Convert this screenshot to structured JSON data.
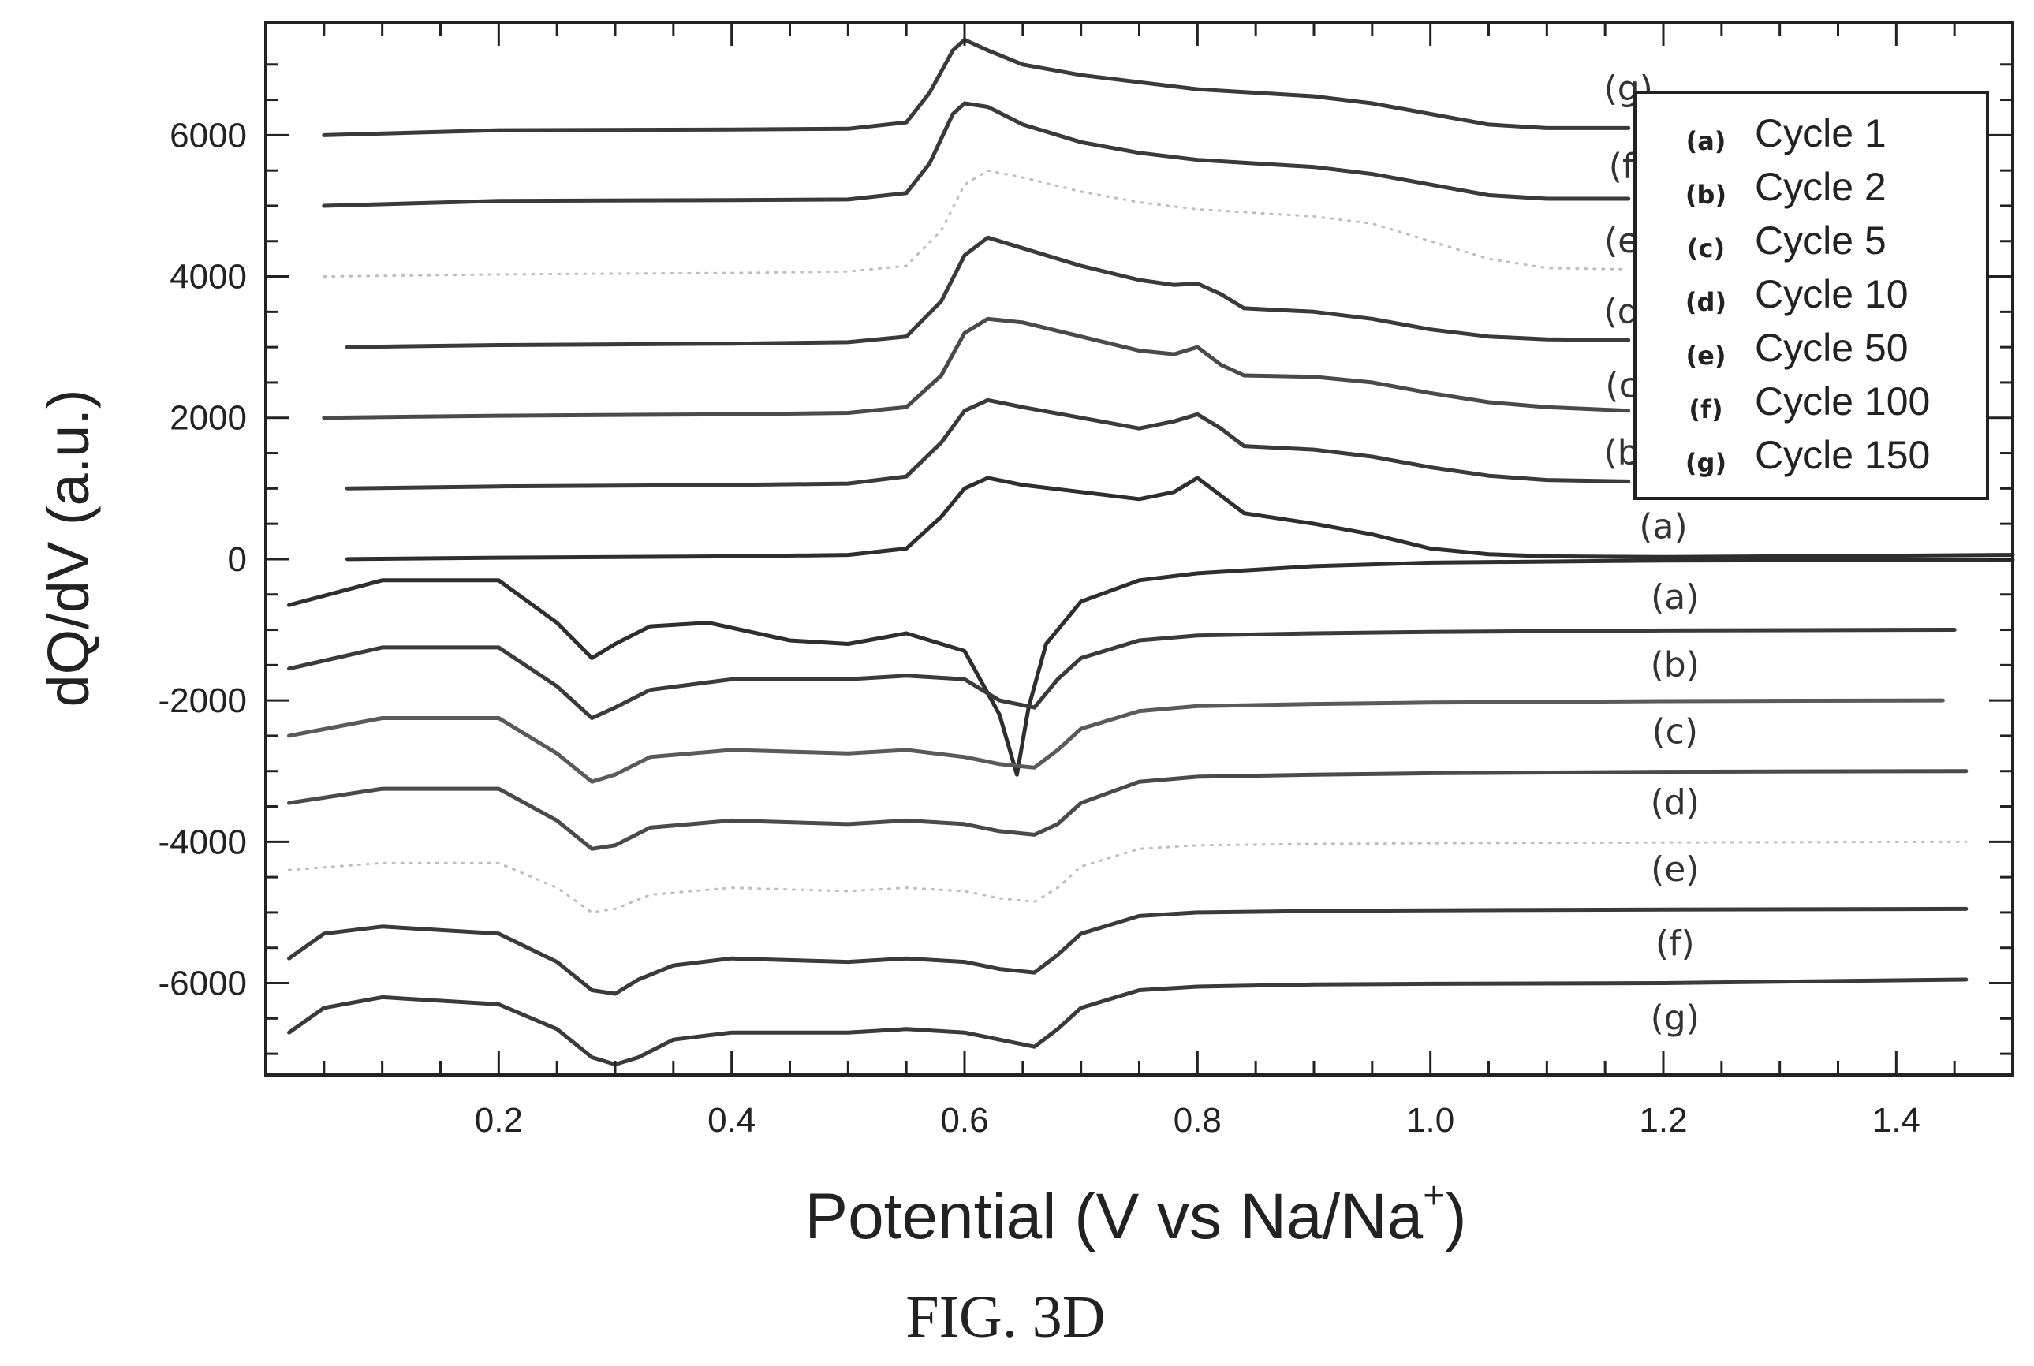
{
  "figure": {
    "caption": "FIG. 3D"
  },
  "chart_data": {
    "type": "line",
    "title": "",
    "xlabel": "Potential (V vs Na/Na",
    "xlabel_sup": "+",
    "xlabel_close": ")",
    "ylabel": "dQ/dV (a.u.)",
    "xlim": [
      0.0,
      1.5
    ],
    "ylim": [
      -7300,
      7600
    ],
    "xticks": [
      0.2,
      0.4,
      0.6,
      0.8,
      1.0,
      1.2,
      1.4
    ],
    "xtick_labels": [
      "0.2",
      "0.4",
      "0.6",
      "0.8",
      "1.0",
      "1.2",
      "1.4"
    ],
    "yticks": [
      6000,
      4000,
      2000,
      0,
      -2000,
      -4000,
      -6000
    ],
    "ytick_labels": [
      "6000",
      "4000",
      "2000",
      "0",
      "-2000",
      "-4000",
      "-6000"
    ],
    "legend_position": "top-right",
    "legend": [
      {
        "key": "(a)",
        "label": "Cycle 1"
      },
      {
        "key": "(b)",
        "label": "Cycle 2"
      },
      {
        "key": "(c)",
        "label": "Cycle 5"
      },
      {
        "key": "(d)",
        "label": "Cycle 10"
      },
      {
        "key": "(e)",
        "label": "Cycle 50"
      },
      {
        "key": "(f)",
        "label": "Cycle 100"
      },
      {
        "key": "(g)",
        "label": "Cycle 150"
      }
    ],
    "charge_labels": [
      {
        "text": "(g)",
        "x": 1.17,
        "y": 6650
      },
      {
        "text": "(f)",
        "x": 1.17,
        "y": 5550
      },
      {
        "text": "(e)",
        "x": 1.17,
        "y": 4500
      },
      {
        "text": "(d)",
        "x": 1.17,
        "y": 3500
      },
      {
        "text": "(c)",
        "x": 1.17,
        "y": 2450
      },
      {
        "text": "(b)",
        "x": 1.17,
        "y": 1500
      },
      {
        "text": "(a)",
        "x": 1.2,
        "y": 450
      }
    ],
    "discharge_labels": [
      {
        "text": "(a)",
        "x": 1.21,
        "y": -550
      },
      {
        "text": "(b)",
        "x": 1.21,
        "y": -1500
      },
      {
        "text": "(c)",
        "x": 1.21,
        "y": -2450
      },
      {
        "text": "(d)",
        "x": 1.21,
        "y": -3450
      },
      {
        "text": "(e)",
        "x": 1.21,
        "y": -4400
      },
      {
        "text": "(f)",
        "x": 1.21,
        "y": -5450
      },
      {
        "text": "(g)",
        "x": 1.21,
        "y": -6500
      }
    ],
    "series": [
      {
        "name": "(a)",
        "color": "#2e2e2e",
        "dotted": false,
        "x": [
          0.07,
          0.2,
          0.4,
          0.5,
          0.55,
          0.58,
          0.6,
          0.62,
          0.65,
          0.7,
          0.75,
          0.78,
          0.8,
          0.82,
          0.84,
          0.9,
          0.95,
          1.0,
          1.05,
          1.1,
          1.2,
          1.3,
          1.4,
          1.5
        ],
        "y": [
          0,
          20,
          40,
          60,
          150,
          600,
          1000,
          1150,
          1050,
          950,
          850,
          950,
          1150,
          900,
          650,
          500,
          350,
          150,
          70,
          40,
          30,
          40,
          50,
          60
        ]
      },
      {
        "name": "(b)",
        "color": "#3a3a3a",
        "dotted": false,
        "x": [
          0.07,
          0.2,
          0.4,
          0.5,
          0.55,
          0.58,
          0.6,
          0.62,
          0.65,
          0.7,
          0.75,
          0.78,
          0.8,
          0.82,
          0.84,
          0.9,
          0.95,
          1.0,
          1.05,
          1.1,
          1.17
        ],
        "y": [
          1000,
          1030,
          1050,
          1070,
          1170,
          1650,
          2100,
          2250,
          2150,
          2000,
          1850,
          1950,
          2050,
          1850,
          1600,
          1550,
          1450,
          1300,
          1180,
          1120,
          1100
        ]
      },
      {
        "name": "(c)",
        "color": "#4a4a4a",
        "dotted": false,
        "x": [
          0.05,
          0.2,
          0.4,
          0.5,
          0.55,
          0.58,
          0.6,
          0.62,
          0.65,
          0.7,
          0.75,
          0.78,
          0.8,
          0.82,
          0.84,
          0.9,
          0.95,
          1.0,
          1.05,
          1.1,
          1.17
        ],
        "y": [
          2000,
          2030,
          2050,
          2070,
          2150,
          2600,
          3200,
          3400,
          3350,
          3150,
          2950,
          2900,
          3000,
          2750,
          2600,
          2580,
          2500,
          2350,
          2220,
          2150,
          2100
        ]
      },
      {
        "name": "(d)",
        "color": "#3a3a3a",
        "dotted": false,
        "x": [
          0.07,
          0.2,
          0.4,
          0.5,
          0.55,
          0.58,
          0.6,
          0.62,
          0.65,
          0.7,
          0.75,
          0.78,
          0.8,
          0.82,
          0.84,
          0.9,
          0.95,
          1.0,
          1.05,
          1.1,
          1.17
        ],
        "y": [
          3000,
          3030,
          3050,
          3070,
          3150,
          3650,
          4300,
          4550,
          4400,
          4150,
          3950,
          3880,
          3900,
          3750,
          3550,
          3500,
          3400,
          3250,
          3150,
          3110,
          3100
        ]
      },
      {
        "name": "(e)",
        "color": "#bdbdbd",
        "dotted": true,
        "x": [
          0.05,
          0.2,
          0.4,
          0.5,
          0.55,
          0.58,
          0.6,
          0.62,
          0.65,
          0.7,
          0.75,
          0.8,
          0.85,
          0.9,
          0.95,
          1.0,
          1.05,
          1.1,
          1.17
        ],
        "y": [
          4000,
          4030,
          4050,
          4070,
          4150,
          4650,
          5300,
          5500,
          5400,
          5200,
          5050,
          4950,
          4900,
          4850,
          4750,
          4500,
          4250,
          4120,
          4100
        ]
      },
      {
        "name": "(f)",
        "color": "#3a3a3a",
        "dotted": false,
        "x": [
          0.05,
          0.2,
          0.4,
          0.5,
          0.55,
          0.57,
          0.59,
          0.6,
          0.62,
          0.65,
          0.7,
          0.75,
          0.8,
          0.85,
          0.9,
          0.95,
          1.0,
          1.05,
          1.1,
          1.17
        ],
        "y": [
          5000,
          5070,
          5080,
          5090,
          5180,
          5600,
          6300,
          6450,
          6400,
          6150,
          5900,
          5750,
          5650,
          5600,
          5550,
          5450,
          5300,
          5150,
          5100,
          5100
        ]
      },
      {
        "name": "(g)",
        "color": "#3a3a3a",
        "dotted": false,
        "x": [
          0.05,
          0.2,
          0.4,
          0.5,
          0.55,
          0.57,
          0.59,
          0.6,
          0.62,
          0.65,
          0.7,
          0.75,
          0.8,
          0.85,
          0.9,
          0.95,
          1.0,
          1.05,
          1.1,
          1.17
        ],
        "y": [
          6000,
          6070,
          6080,
          6090,
          6180,
          6600,
          7200,
          7350,
          7200,
          7000,
          6850,
          6750,
          6650,
          6600,
          6550,
          6450,
          6300,
          6150,
          6100,
          6100
        ]
      },
      {
        "name": "(a)",
        "color": "#2e2e2e",
        "dotted": false,
        "x": [
          0.02,
          0.1,
          0.2,
          0.25,
          0.28,
          0.3,
          0.33,
          0.38,
          0.45,
          0.5,
          0.55,
          0.6,
          0.63,
          0.645,
          0.655,
          0.67,
          0.7,
          0.75,
          0.8,
          0.9,
          1.0,
          1.2,
          1.5
        ],
        "y": [
          -650,
          -300,
          -300,
          -900,
          -1400,
          -1200,
          -950,
          -900,
          -1150,
          -1200,
          -1050,
          -1300,
          -2200,
          -3050,
          -2100,
          -1200,
          -600,
          -300,
          -200,
          -100,
          -50,
          -20,
          -10
        ]
      },
      {
        "name": "(b)",
        "color": "#3a3a3a",
        "dotted": false,
        "x": [
          0.02,
          0.1,
          0.2,
          0.25,
          0.28,
          0.3,
          0.33,
          0.4,
          0.5,
          0.55,
          0.6,
          0.63,
          0.66,
          0.68,
          0.7,
          0.75,
          0.8,
          0.9,
          1.0,
          1.2,
          1.45
        ],
        "y": [
          -1550,
          -1250,
          -1250,
          -1800,
          -2250,
          -2100,
          -1850,
          -1700,
          -1700,
          -1650,
          -1700,
          -2000,
          -2100,
          -1700,
          -1400,
          -1150,
          -1080,
          -1050,
          -1030,
          -1010,
          -1000
        ]
      },
      {
        "name": "(c)",
        "color": "#5a5a5a",
        "dotted": false,
        "x": [
          0.02,
          0.1,
          0.2,
          0.25,
          0.28,
          0.3,
          0.33,
          0.4,
          0.5,
          0.55,
          0.6,
          0.63,
          0.66,
          0.68,
          0.7,
          0.75,
          0.8,
          0.9,
          1.0,
          1.2,
          1.44
        ],
        "y": [
          -2500,
          -2250,
          -2250,
          -2750,
          -3150,
          -3050,
          -2800,
          -2700,
          -2750,
          -2700,
          -2800,
          -2900,
          -2950,
          -2700,
          -2400,
          -2150,
          -2080,
          -2050,
          -2030,
          -2010,
          -2000
        ]
      },
      {
        "name": "(d)",
        "color": "#4a4a4a",
        "dotted": false,
        "x": [
          0.02,
          0.1,
          0.2,
          0.25,
          0.28,
          0.3,
          0.33,
          0.4,
          0.5,
          0.55,
          0.6,
          0.63,
          0.66,
          0.68,
          0.7,
          0.75,
          0.8,
          0.9,
          1.0,
          1.2,
          1.46
        ],
        "y": [
          -3450,
          -3250,
          -3250,
          -3700,
          -4100,
          -4050,
          -3800,
          -3700,
          -3750,
          -3700,
          -3750,
          -3850,
          -3900,
          -3750,
          -3450,
          -3150,
          -3080,
          -3050,
          -3030,
          -3010,
          -3000
        ]
      },
      {
        "name": "(e)",
        "color": "#bdbdbd",
        "dotted": true,
        "x": [
          0.02,
          0.1,
          0.2,
          0.25,
          0.28,
          0.3,
          0.33,
          0.4,
          0.5,
          0.55,
          0.6,
          0.63,
          0.66,
          0.68,
          0.7,
          0.75,
          0.8,
          0.9,
          1.0,
          1.2,
          1.46
        ],
        "y": [
          -4400,
          -4300,
          -4300,
          -4650,
          -5000,
          -4950,
          -4750,
          -4650,
          -4700,
          -4650,
          -4700,
          -4800,
          -4850,
          -4650,
          -4350,
          -4100,
          -4050,
          -4030,
          -4020,
          -4010,
          -4000
        ]
      },
      {
        "name": "(f)",
        "color": "#3a3a3a",
        "dotted": false,
        "x": [
          0.02,
          0.05,
          0.1,
          0.2,
          0.25,
          0.28,
          0.3,
          0.32,
          0.35,
          0.4,
          0.5,
          0.55,
          0.6,
          0.63,
          0.66,
          0.68,
          0.7,
          0.75,
          0.8,
          0.9,
          1.0,
          1.2,
          1.46
        ],
        "y": [
          -5650,
          -5300,
          -5200,
          -5300,
          -5700,
          -6100,
          -6150,
          -5950,
          -5750,
          -5650,
          -5700,
          -5650,
          -5700,
          -5800,
          -5850,
          -5600,
          -5300,
          -5050,
          -5000,
          -4980,
          -4970,
          -4960,
          -4950
        ]
      },
      {
        "name": "(g)",
        "color": "#3a3a3a",
        "dotted": false,
        "x": [
          0.02,
          0.05,
          0.1,
          0.2,
          0.25,
          0.28,
          0.3,
          0.32,
          0.35,
          0.4,
          0.5,
          0.55,
          0.6,
          0.63,
          0.66,
          0.68,
          0.7,
          0.75,
          0.8,
          0.9,
          1.0,
          1.2,
          1.46
        ],
        "y": [
          -6700,
          -6350,
          -6200,
          -6300,
          -6650,
          -7050,
          -7150,
          -7050,
          -6800,
          -6700,
          -6700,
          -6650,
          -6700,
          -6800,
          -6900,
          -6650,
          -6350,
          -6100,
          -6050,
          -6020,
          -6010,
          -6000,
          -5950
        ]
      }
    ]
  }
}
